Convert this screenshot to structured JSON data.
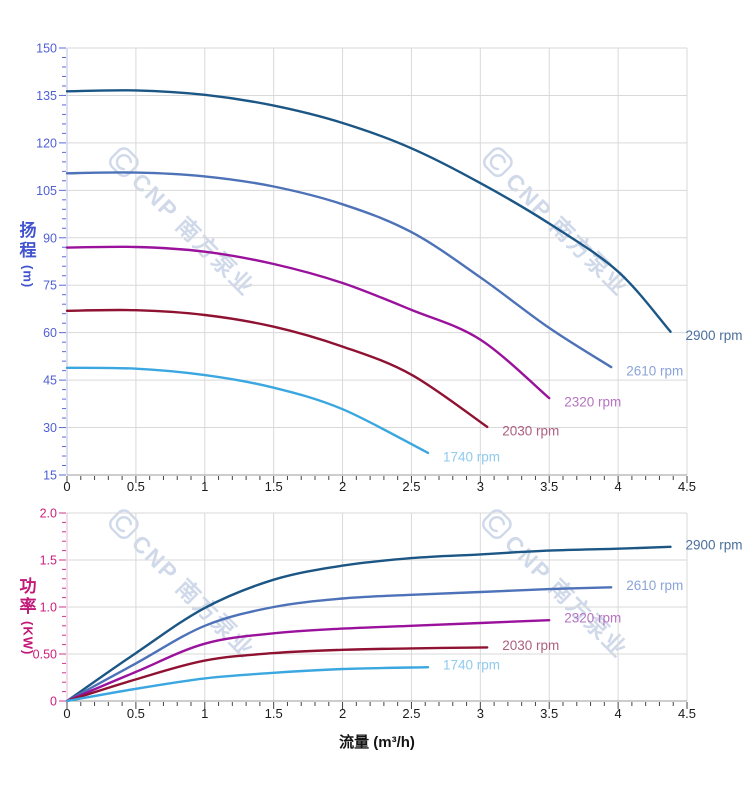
{
  "watermark": {
    "text": "CNP 南方泵业",
    "color": "#cbd5e8"
  },
  "chart_data": [
    {
      "id": "head",
      "type": "line",
      "ylabel": "扬程",
      "ylabel_unit": "(m)",
      "xlabel": "",
      "xlim": [
        0,
        4.5
      ],
      "ylim": [
        15,
        150
      ],
      "x_minor_step": 0.1,
      "y_minor_step": 3,
      "grid": true,
      "axis_line_color": "#b7bfe9",
      "tick_color": "#5a6ad8",
      "ytick_label_color": "#4f5fd4",
      "xtick_label_color": "#1b1b1b",
      "title_color": "#4153cf",
      "x_ticks": {
        "values": [
          0,
          0.5,
          1,
          1.5,
          2,
          2.5,
          3,
          3.5,
          4,
          4.5
        ],
        "labels": [
          "0",
          "0.5",
          "1",
          "1.5",
          "2",
          "2.5",
          "3",
          "3.5",
          "4",
          "4.5"
        ]
      },
      "y_ticks": {
        "values": [
          15,
          30,
          45,
          60,
          75,
          90,
          105,
          120,
          135,
          150
        ],
        "labels": [
          "15",
          "30",
          "45",
          "60",
          "75",
          "90",
          "105",
          "120",
          "135",
          "150"
        ]
      },
      "series": [
        {
          "name": "2900 rpm",
          "color": "#1b5685",
          "label_color": "#4a6f9c",
          "points": [
            [
              0,
              136.3
            ],
            [
              0.5,
              136.6
            ],
            [
              1,
              135.2
            ],
            [
              1.5,
              131.8
            ],
            [
              2,
              126.3
            ],
            [
              2.5,
              118.3
            ],
            [
              3,
              107.3
            ],
            [
              3.5,
              94.5
            ],
            [
              4,
              79.3
            ],
            [
              4.38,
              60.3
            ]
          ]
        },
        {
          "name": "2610 rpm",
          "color": "#4d72b8",
          "label_color": "#8ba3d8",
          "points": [
            [
              0,
              110.4
            ],
            [
              0.5,
              110.6
            ],
            [
              1,
              109.4
            ],
            [
              1.5,
              106.2
            ],
            [
              2,
              100.6
            ],
            [
              2.5,
              91.8
            ],
            [
              3,
              77.5
            ],
            [
              3.5,
              61.5
            ],
            [
              3.95,
              49.1
            ]
          ]
        },
        {
          "name": "2320 rpm",
          "color": "#9a129c",
          "label_color": "#b573c1",
          "points": [
            [
              0,
              86.9
            ],
            [
              0.5,
              87.1
            ],
            [
              1,
              85.6
            ],
            [
              1.5,
              81.7
            ],
            [
              2,
              75.7
            ],
            [
              2.5,
              67.2
            ],
            [
              3,
              57.8
            ],
            [
              3.5,
              39.3
            ]
          ]
        },
        {
          "name": "2030 rpm",
          "color": "#8f1232",
          "label_color": "#ad5f7e",
          "points": [
            [
              0,
              66.9
            ],
            [
              0.5,
              67.1
            ],
            [
              1,
              65.6
            ],
            [
              1.5,
              61.9
            ],
            [
              2,
              55.6
            ],
            [
              2.5,
              46.7
            ],
            [
              3.05,
              30.2
            ]
          ]
        },
        {
          "name": "1740 rpm",
          "color": "#3ba7e0",
          "label_color": "#8fc9f0",
          "points": [
            [
              0,
              48.9
            ],
            [
              0.5,
              48.6
            ],
            [
              1,
              46.6
            ],
            [
              1.5,
              42.6
            ],
            [
              2,
              35.8
            ],
            [
              2.62,
              22.0
            ]
          ]
        }
      ]
    },
    {
      "id": "power",
      "type": "line",
      "ylabel": "功率",
      "ylabel_unit": "(KW)",
      "xlabel": "流量 (m³/h)",
      "xlim": [
        0,
        4.5
      ],
      "ylim": [
        0,
        2
      ],
      "x_minor_step": 0.1,
      "y_minor_step": 0.1,
      "grid": true,
      "axis_line_color": "#e9b7d4",
      "tick_color": "#d1368e",
      "ytick_label_color": "#cc1f7d",
      "xtick_label_color": "#1b1b1b",
      "title_color": "#c21878",
      "x_ticks": {
        "values": [
          0,
          0.5,
          1,
          1.5,
          2,
          2.5,
          3,
          3.5,
          4,
          4.5
        ],
        "labels": [
          "0",
          "0.5",
          "1",
          "1.5",
          "2",
          "2.5",
          "3",
          "3.5",
          "4",
          "4.5"
        ]
      },
      "y_ticks": {
        "values": [
          0,
          0.5,
          1,
          1.5,
          2
        ],
        "labels": [
          "0",
          "0.50",
          "1.0",
          "1.5",
          "2.0"
        ]
      },
      "series": [
        {
          "name": "2900 rpm",
          "color": "#1b5685",
          "label_color": "#4a6f9c",
          "points": [
            [
              0,
              0
            ],
            [
              0.5,
              0.51
            ],
            [
              1,
              0.99
            ],
            [
              1.5,
              1.29
            ],
            [
              2,
              1.44
            ],
            [
              2.5,
              1.52
            ],
            [
              3,
              1.56
            ],
            [
              3.5,
              1.6
            ],
            [
              4,
              1.62
            ],
            [
              4.38,
              1.64
            ]
          ]
        },
        {
          "name": "2610 rpm",
          "color": "#4d72b8",
          "label_color": "#8ba3d8",
          "points": [
            [
              0,
              0
            ],
            [
              0.5,
              0.4
            ],
            [
              1,
              0.8
            ],
            [
              1.5,
              1.0
            ],
            [
              2,
              1.09
            ],
            [
              2.5,
              1.13
            ],
            [
              3,
              1.16
            ],
            [
              3.5,
              1.19
            ],
            [
              3.95,
              1.21
            ]
          ]
        },
        {
          "name": "2320 rpm",
          "color": "#9a129c",
          "label_color": "#b573c1",
          "points": [
            [
              0,
              0
            ],
            [
              0.5,
              0.31
            ],
            [
              1,
              0.61
            ],
            [
              1.5,
              0.72
            ],
            [
              2,
              0.77
            ],
            [
              2.5,
              0.8
            ],
            [
              3,
              0.83
            ],
            [
              3.5,
              0.86
            ]
          ]
        },
        {
          "name": "2030 rpm",
          "color": "#8f1232",
          "label_color": "#ad5f7e",
          "points": [
            [
              0,
              0
            ],
            [
              0.5,
              0.23
            ],
            [
              1,
              0.43
            ],
            [
              1.5,
              0.51
            ],
            [
              2,
              0.545
            ],
            [
              2.5,
              0.56
            ],
            [
              3.05,
              0.57
            ]
          ]
        },
        {
          "name": "1740 rpm",
          "color": "#3ba7e0",
          "label_color": "#8fc9f0",
          "points": [
            [
              0,
              0
            ],
            [
              0.5,
              0.13
            ],
            [
              1,
              0.24
            ],
            [
              1.5,
              0.3
            ],
            [
              2,
              0.34
            ],
            [
              2.62,
              0.36
            ]
          ]
        }
      ]
    }
  ]
}
